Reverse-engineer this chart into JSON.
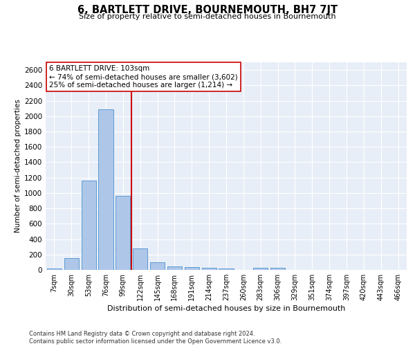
{
  "title": "6, BARTLETT DRIVE, BOURNEMOUTH, BH7 7JT",
  "subtitle": "Size of property relative to semi-detached houses in Bournemouth",
  "xlabel": "Distribution of semi-detached houses by size in Bournemouth",
  "ylabel": "Number of semi-detached properties",
  "footer_line1": "Contains HM Land Registry data © Crown copyright and database right 2024.",
  "footer_line2": "Contains public sector information licensed under the Open Government Licence v3.0.",
  "categories": [
    "7sqm",
    "30sqm",
    "53sqm",
    "76sqm",
    "99sqm",
    "122sqm",
    "145sqm",
    "168sqm",
    "191sqm",
    "214sqm",
    "237sqm",
    "260sqm",
    "283sqm",
    "306sqm",
    "329sqm",
    "351sqm",
    "374sqm",
    "397sqm",
    "420sqm",
    "443sqm",
    "466sqm"
  ],
  "values": [
    20,
    155,
    1165,
    2090,
    960,
    275,
    100,
    48,
    40,
    25,
    20,
    0,
    25,
    25,
    0,
    0,
    0,
    0,
    0,
    0,
    0
  ],
  "bar_color": "#aec6e8",
  "bar_edge_color": "#5b9bd5",
  "background_color": "#e8eef7",
  "grid_color": "#ffffff",
  "property_label": "6 BARTLETT DRIVE: 103sqm",
  "pct_smaller": 74,
  "num_smaller": 3602,
  "pct_larger": 25,
  "num_larger": 1214,
  "vline_color": "#cc0000",
  "annotation_box_color": "#ffffff",
  "annotation_border_color": "#cc0000",
  "ylim": [
    0,
    2700
  ],
  "yticks": [
    0,
    200,
    400,
    600,
    800,
    1000,
    1200,
    1400,
    1600,
    1800,
    2000,
    2200,
    2400,
    2600
  ]
}
